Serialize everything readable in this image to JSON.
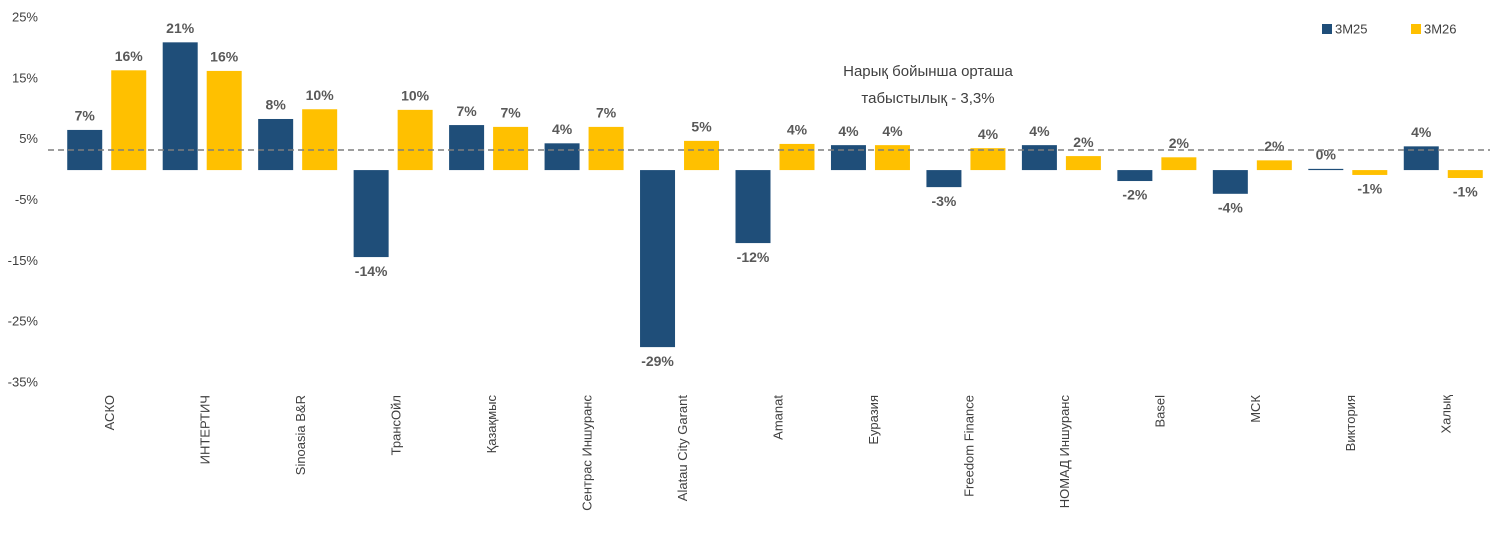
{
  "chart_data": {
    "type": "bar",
    "categories": [
      "АСКО",
      "ИНТЕРТИЧ",
      "Sinoasia B&R",
      "ТрансОйл",
      "Қазақмыс",
      "Сентрас Иншуранс",
      "Alatau City Garant",
      "Amanat",
      "Еуразия",
      "Freedom Finance",
      "НОМАД Иншуранс",
      "Basel",
      "МСК",
      "Виктория",
      "Халық"
    ],
    "series": [
      {
        "name": "3М25",
        "color": "#1f4e79",
        "values": [
          6.6,
          21,
          8.4,
          -14.3,
          7.4,
          4.4,
          -29.1,
          -12,
          4.1,
          -2.8,
          4.1,
          -1.8,
          -3.9,
          0.2,
          3.9
        ],
        "value_labels": [
          "7%",
          "21%",
          "8%",
          "-14%",
          "7%",
          "4%",
          "-29%",
          "-12%",
          "4%",
          "-3%",
          "4%",
          "-2%",
          "-4%",
          "0%",
          "4%"
        ]
      },
      {
        "name": "3М26",
        "color": "#ffc000",
        "values": [
          16.4,
          16.3,
          10,
          9.9,
          7.1,
          7.1,
          4.8,
          4.3,
          4.1,
          3.6,
          2.3,
          2.1,
          1.6,
          -0.8,
          -1.3
        ],
        "value_labels": [
          "16%",
          "16%",
          "10%",
          "10%",
          "7%",
          "7%",
          "5%",
          "4%",
          "4%",
          "4%",
          "2%",
          "2%",
          "2%",
          "-1%",
          "-1%"
        ]
      }
    ],
    "ylim": [
      -35,
      25
    ],
    "yticks": [
      {
        "value": 25,
        "label": "25%"
      },
      {
        "value": 15,
        "label": "15%"
      },
      {
        "value": 5,
        "label": "5%"
      },
      {
        "value": -5,
        "label": "-5%"
      },
      {
        "value": -15,
        "label": "-15%"
      },
      {
        "value": -25,
        "label": "-25%"
      },
      {
        "value": -35,
        "label": "-35%"
      }
    ],
    "reference": {
      "value": 3.3,
      "label": [
        "Нарық бойынша орташа",
        "табыстылық - 3,3%"
      ]
    },
    "legend": "top-right",
    "grid": false
  }
}
